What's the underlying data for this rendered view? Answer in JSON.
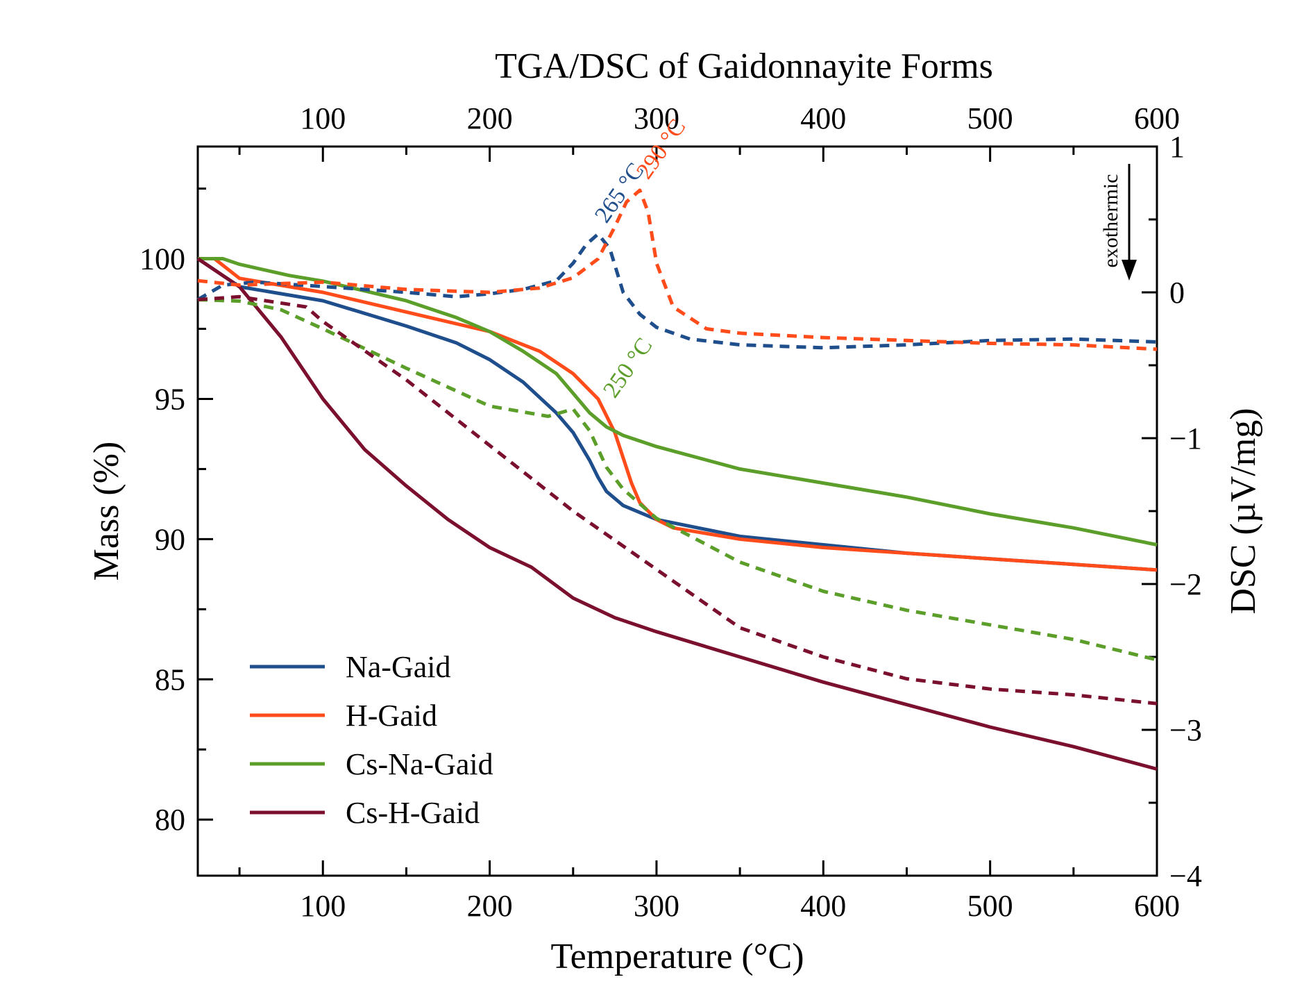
{
  "chart_data": {
    "type": "line",
    "title": "TGA/DSC of Gaidonnayite Forms",
    "xlabel": "Temperature (°C)",
    "ylabel_left": "Mass (%)",
    "ylabel_right": "DSC (µV/mg)",
    "xlim": [
      25,
      600
    ],
    "ylim_left": [
      78,
      104
    ],
    "ylim_right": [
      -4,
      1
    ],
    "x_ticks": [
      100,
      200,
      300,
      400,
      500,
      600
    ],
    "y_left_ticks": [
      80,
      85,
      90,
      95,
      100
    ],
    "y_right_ticks": [
      {
        "value": 1,
        "label": "1"
      },
      {
        "value": 0,
        "label": "0"
      },
      {
        "value": -1,
        "label": "−1"
      },
      {
        "value": -2,
        "label": "−2"
      },
      {
        "value": -3,
        "label": "−3"
      },
      {
        "value": -4,
        "label": "−4"
      }
    ],
    "grid": false,
    "legend_position": "bottom-left",
    "colors": {
      "Na-Gaid": "#1f4e8c",
      "H-Gaid": "#ff4c1a",
      "Cs-Na-Gaid": "#5c9e2a",
      "Cs-H-Gaid": "#7a0f2e"
    },
    "series": [
      {
        "name": "Na-Gaid",
        "axis": "left",
        "style": "solid",
        "color": "#1f4e8c",
        "x": [
          25,
          50,
          100,
          150,
          180,
          200,
          220,
          240,
          250,
          260,
          265,
          270,
          280,
          300,
          350,
          400,
          450,
          500,
          550,
          600
        ],
        "y": [
          100,
          99.0,
          98.5,
          97.6,
          97.0,
          96.4,
          95.6,
          94.5,
          93.8,
          92.8,
          92.2,
          91.7,
          91.2,
          90.7,
          90.1,
          89.8,
          89.5,
          89.3,
          89.1,
          88.9
        ]
      },
      {
        "name": "H-Gaid",
        "axis": "left",
        "style": "solid",
        "color": "#ff4c1a",
        "x": [
          25,
          35,
          50,
          100,
          150,
          200,
          230,
          250,
          265,
          275,
          285,
          290,
          300,
          310,
          350,
          400,
          450,
          500,
          550,
          600
        ],
        "y": [
          100,
          100,
          99.3,
          98.8,
          98.1,
          97.4,
          96.7,
          95.9,
          95.0,
          93.8,
          92.0,
          91.3,
          90.7,
          90.4,
          90.0,
          89.7,
          89.5,
          89.3,
          89.1,
          88.9
        ]
      },
      {
        "name": "Cs-Na-Gaid",
        "axis": "left",
        "style": "solid",
        "color": "#5c9e2a",
        "x": [
          25,
          40,
          50,
          80,
          100,
          150,
          180,
          200,
          220,
          240,
          250,
          260,
          270,
          280,
          300,
          350,
          400,
          450,
          500,
          550,
          600
        ],
        "y": [
          100,
          100,
          99.8,
          99.4,
          99.2,
          98.5,
          97.9,
          97.4,
          96.7,
          95.9,
          95.2,
          94.5,
          94.0,
          93.7,
          93.3,
          92.5,
          92.0,
          91.5,
          90.9,
          90.4,
          89.8
        ]
      },
      {
        "name": "Cs-H-Gaid",
        "axis": "left",
        "style": "solid",
        "color": "#7a0f2e",
        "x": [
          25,
          50,
          75,
          100,
          125,
          150,
          175,
          200,
          225,
          250,
          275,
          300,
          350,
          400,
          450,
          500,
          550,
          600
        ],
        "y": [
          100,
          99.0,
          97.2,
          95.0,
          93.2,
          91.9,
          90.7,
          89.7,
          89.0,
          87.9,
          87.2,
          86.7,
          85.8,
          84.9,
          84.1,
          83.3,
          82.6,
          81.8
        ]
      },
      {
        "name": "Na-Gaid DSC",
        "axis": "right",
        "style": "dashed",
        "color": "#1f4e8c",
        "x": [
          25,
          40,
          60,
          100,
          150,
          180,
          200,
          220,
          240,
          250,
          258,
          265,
          272,
          280,
          290,
          300,
          320,
          350,
          400,
          450,
          500,
          550,
          600
        ],
        "y": [
          -0.05,
          0.05,
          0.07,
          0.04,
          0.0,
          -0.03,
          -0.01,
          0.02,
          0.08,
          0.2,
          0.33,
          0.4,
          0.3,
          0.0,
          -0.15,
          -0.24,
          -0.32,
          -0.36,
          -0.38,
          -0.36,
          -0.33,
          -0.32,
          -0.34
        ]
      },
      {
        "name": "H-Gaid DSC",
        "axis": "right",
        "style": "dashed",
        "color": "#ff4c1a",
        "x": [
          25,
          50,
          100,
          150,
          200,
          230,
          250,
          265,
          275,
          282,
          290,
          295,
          300,
          310,
          330,
          350,
          400,
          450,
          500,
          550,
          600
        ],
        "y": [
          0.08,
          0.05,
          0.07,
          0.02,
          0.0,
          0.03,
          0.1,
          0.23,
          0.45,
          0.62,
          0.7,
          0.55,
          0.2,
          -0.1,
          -0.25,
          -0.28,
          -0.31,
          -0.33,
          -0.35,
          -0.36,
          -0.39
        ]
      },
      {
        "name": "Cs-Na-Gaid DSC",
        "axis": "right",
        "style": "dashed",
        "color": "#5c9e2a",
        "x": [
          25,
          50,
          75,
          100,
          150,
          200,
          235,
          250,
          260,
          270,
          280,
          300,
          350,
          400,
          450,
          500,
          550,
          600
        ],
        "y": [
          -0.05,
          -0.06,
          -0.12,
          -0.25,
          -0.52,
          -0.78,
          -0.85,
          -0.8,
          -0.95,
          -1.2,
          -1.35,
          -1.55,
          -1.85,
          -2.05,
          -2.18,
          -2.28,
          -2.38,
          -2.52
        ]
      },
      {
        "name": "Cs-H-Gaid DSC",
        "axis": "right",
        "style": "dashed",
        "color": "#7a0f2e",
        "x": [
          25,
          50,
          90,
          100,
          150,
          200,
          250,
          300,
          350,
          400,
          450,
          500,
          550,
          600
        ],
        "y": [
          -0.05,
          -0.03,
          -0.1,
          -0.2,
          -0.6,
          -1.05,
          -1.5,
          -1.9,
          -2.3,
          -2.5,
          -2.65,
          -2.72,
          -2.76,
          -2.82
        ]
      }
    ],
    "annotations": [
      {
        "text": "265 °C",
        "x": 265,
        "y": 0.4,
        "axis": "right",
        "color": "#1f4e8c"
      },
      {
        "text": "290 °C",
        "x": 290,
        "y": 0.7,
        "axis": "right",
        "color": "#ff4c1a"
      },
      {
        "text": "250 °C",
        "x": 270,
        "y": -0.8,
        "axis": "right",
        "color": "#5c9e2a"
      }
    ],
    "exothermic_label": "exothermic"
  }
}
